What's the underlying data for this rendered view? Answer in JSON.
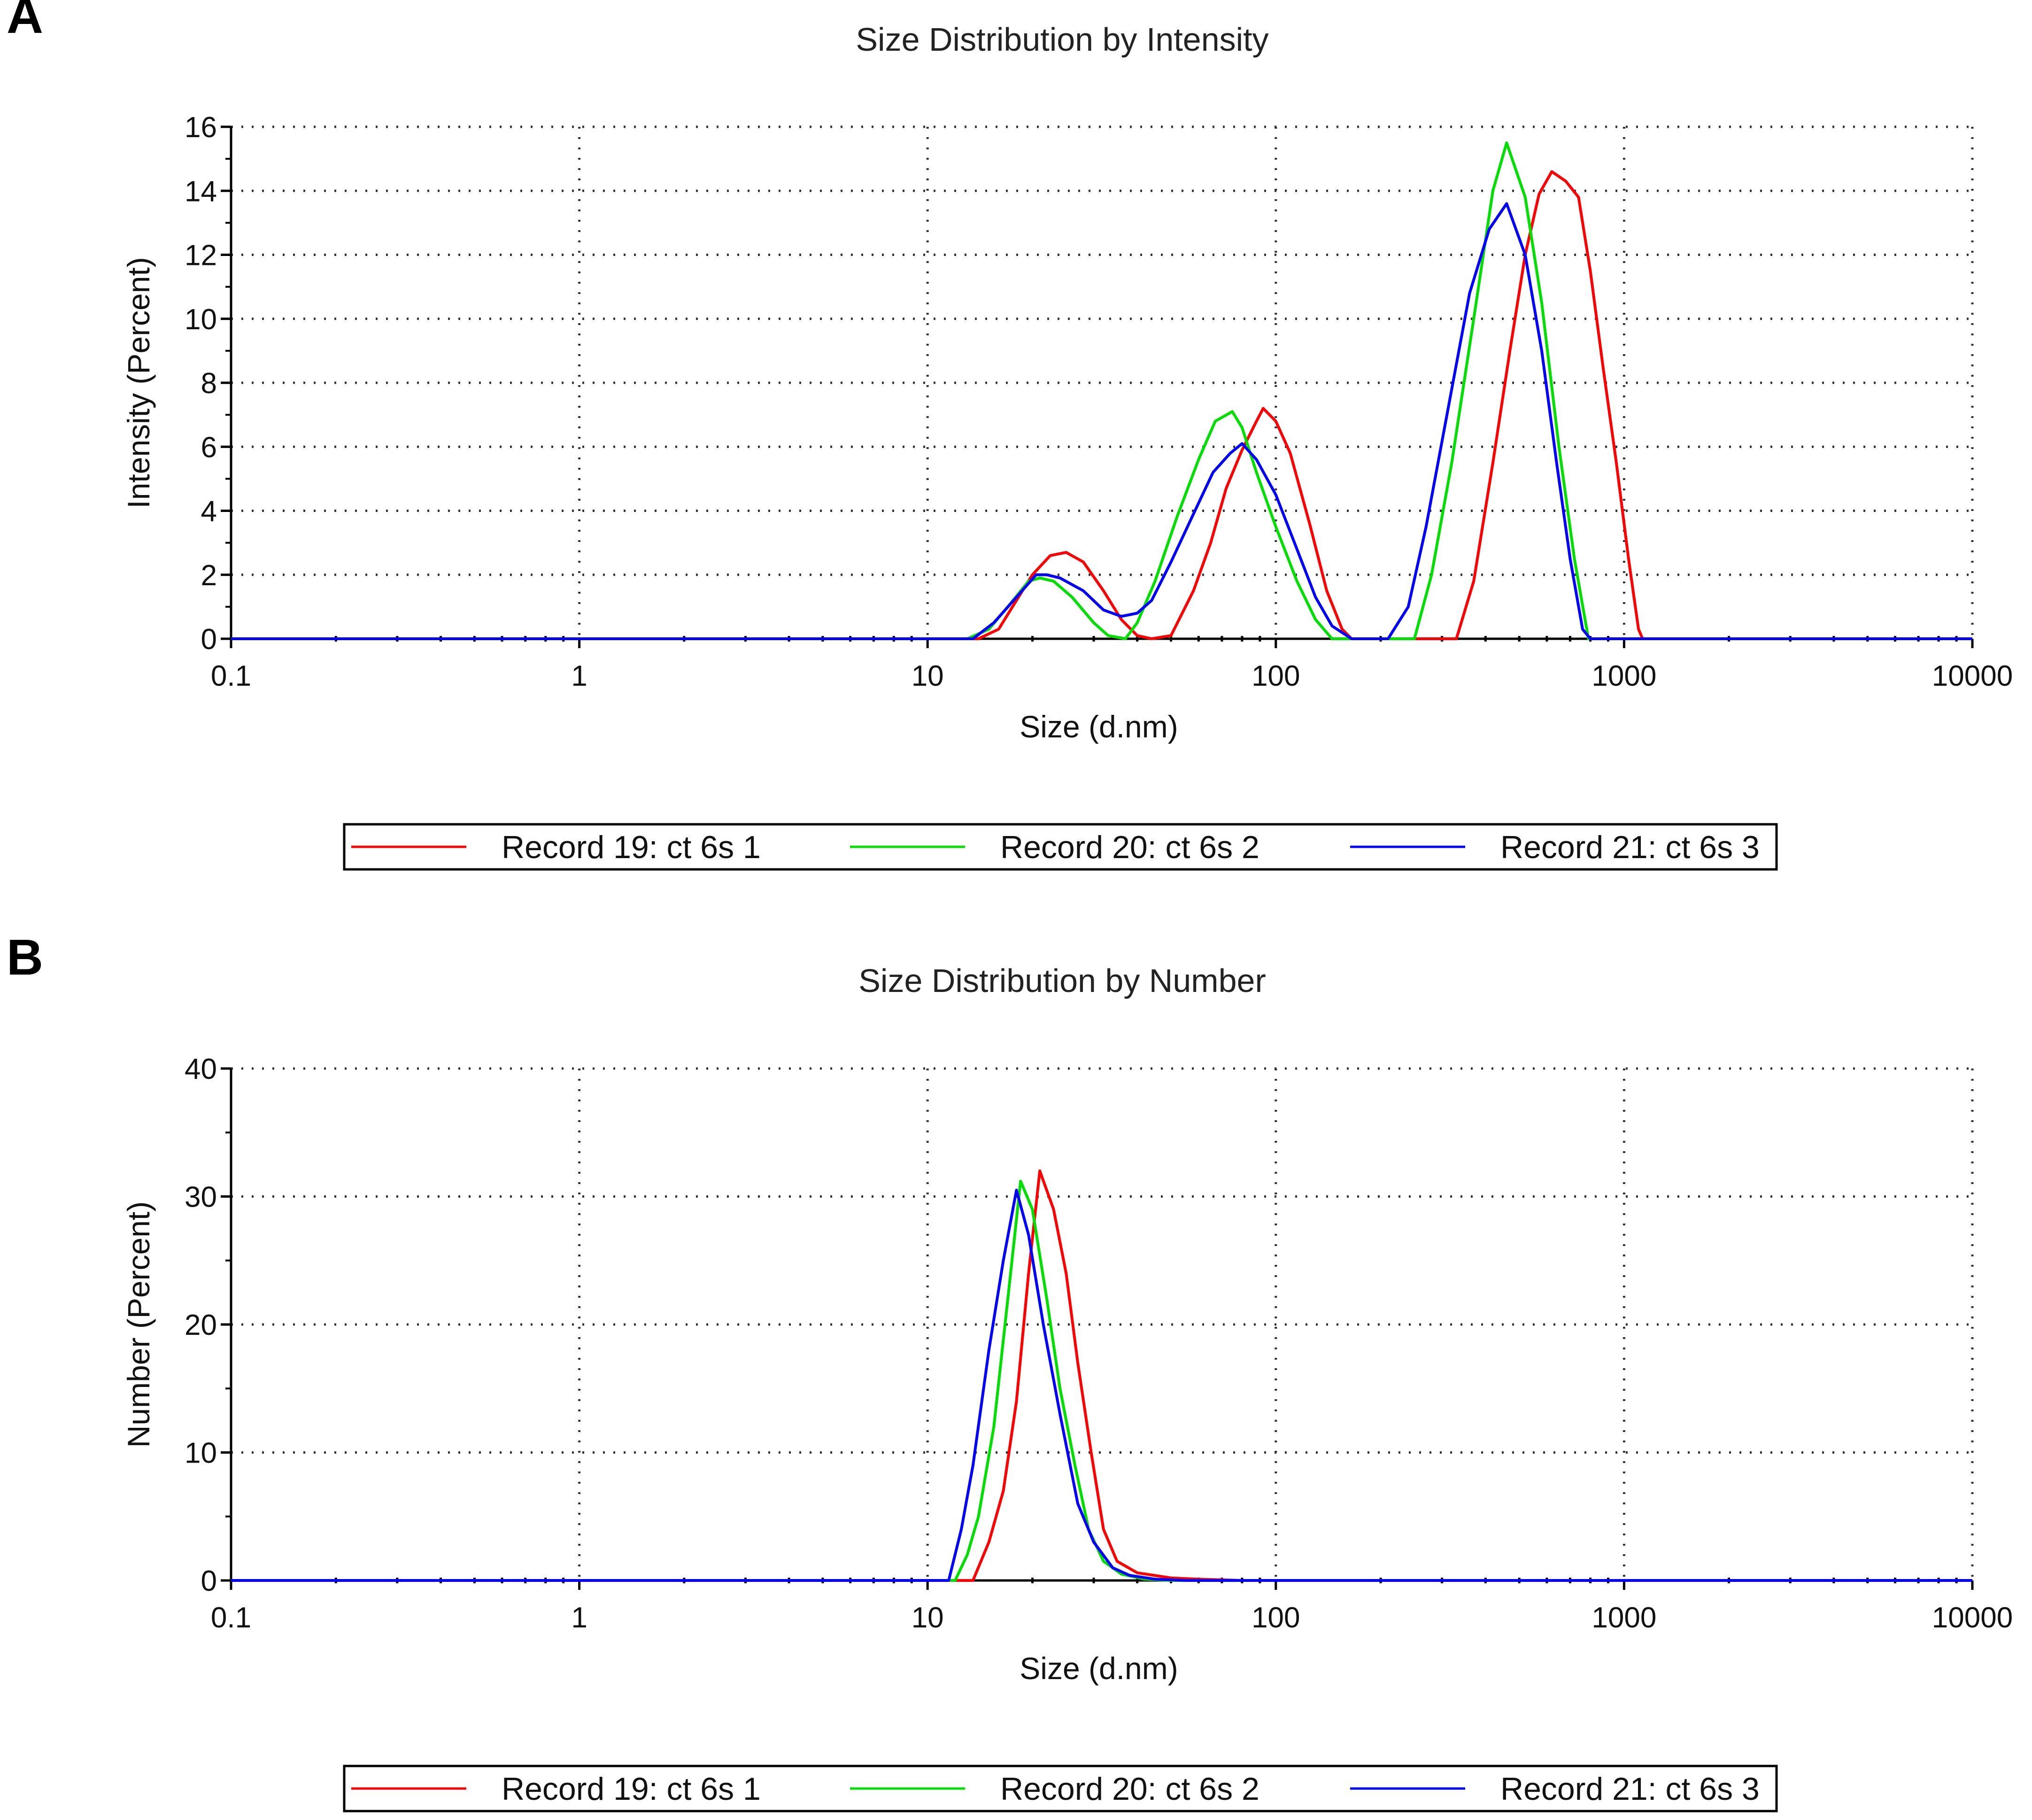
{
  "panels": [
    {
      "label": "A",
      "legend": [
        "Record 19: ct 6s 1",
        "Record 20: ct 6s 2",
        "Record 21: ct 6s 3"
      ]
    },
    {
      "label": "B",
      "legend": [
        "Record 19: ct 6s 1",
        "Record 20: ct 6s 2",
        "Record 21: ct 6s 3"
      ]
    }
  ],
  "chart_data": [
    {
      "type": "line",
      "title": "Size Distribution by Intensity",
      "xlabel": "Size (d.nm)",
      "ylabel": "Intensity (Percent)",
      "xscale": "log",
      "xlim": [
        0.1,
        10000
      ],
      "ylim": [
        0,
        16
      ],
      "xticks": [
        "0.1",
        "1",
        "10",
        "100",
        "1000",
        "10000"
      ],
      "yticks": [
        "0",
        "2",
        "4",
        "6",
        "8",
        "10",
        "12",
        "14",
        "16"
      ],
      "grid": true,
      "legend_position": "bottom",
      "series": [
        {
          "name": "Record 19: ct 6s 1",
          "color": "#ff0000",
          "points": [
            [
              0.1,
              0
            ],
            [
              14,
              0
            ],
            [
              16,
              0.3
            ],
            [
              18,
              1.2
            ],
            [
              20,
              2.0
            ],
            [
              22.5,
              2.6
            ],
            [
              25,
              2.7
            ],
            [
              28,
              2.4
            ],
            [
              32,
              1.5
            ],
            [
              36,
              0.6
            ],
            [
              40,
              0.1
            ],
            [
              44,
              0
            ],
            [
              50,
              0.1
            ],
            [
              58,
              1.5
            ],
            [
              65,
              3.0
            ],
            [
              72,
              4.7
            ],
            [
              80,
              5.9
            ],
            [
              88,
              6.8
            ],
            [
              92,
              7.2
            ],
            [
              100,
              6.8
            ],
            [
              110,
              5.8
            ],
            [
              125,
              3.6
            ],
            [
              140,
              1.5
            ],
            [
              155,
              0.3
            ],
            [
              165,
              0
            ],
            [
              330,
              0
            ],
            [
              370,
              1.8
            ],
            [
              420,
              5.5
            ],
            [
              470,
              9.0
            ],
            [
              520,
              12.0
            ],
            [
              570,
              13.9
            ],
            [
              620,
              14.6
            ],
            [
              680,
              14.3
            ],
            [
              740,
              13.8
            ],
            [
              800,
              11.5
            ],
            [
              870,
              8.5
            ],
            [
              950,
              5.5
            ],
            [
              1030,
              2.5
            ],
            [
              1100,
              0.3
            ],
            [
              1130,
              0
            ],
            [
              10000,
              0
            ]
          ]
        },
        {
          "name": "Record 20: ct 6s 2",
          "color": "#00e000",
          "points": [
            [
              0.1,
              0
            ],
            [
              13,
              0
            ],
            [
              15,
              0.3
            ],
            [
              17,
              1.0
            ],
            [
              19.5,
              1.8
            ],
            [
              21,
              1.9
            ],
            [
              23,
              1.8
            ],
            [
              26,
              1.3
            ],
            [
              30,
              0.5
            ],
            [
              33,
              0.1
            ],
            [
              37,
              0
            ],
            [
              40,
              0.5
            ],
            [
              45,
              1.8
            ],
            [
              52,
              3.8
            ],
            [
              60,
              5.6
            ],
            [
              67,
              6.8
            ],
            [
              75,
              7.1
            ],
            [
              80,
              6.6
            ],
            [
              88,
              5.2
            ],
            [
              100,
              3.5
            ],
            [
              115,
              1.8
            ],
            [
              130,
              0.6
            ],
            [
              145,
              0
            ],
            [
              250,
              0
            ],
            [
              280,
              2.0
            ],
            [
              320,
              5.5
            ],
            [
              370,
              10.0
            ],
            [
              420,
              14.0
            ],
            [
              460,
              15.5
            ],
            [
              520,
              13.8
            ],
            [
              580,
              10.5
            ],
            [
              650,
              6.0
            ],
            [
              720,
              2.5
            ],
            [
              790,
              0
            ],
            [
              10000,
              0
            ]
          ]
        },
        {
          "name": "Record 21: ct 6s 3",
          "color": "#0000ff",
          "points": [
            [
              0.1,
              0
            ],
            [
              13.5,
              0
            ],
            [
              15.5,
              0.5
            ],
            [
              18,
              1.3
            ],
            [
              20.5,
              2.0
            ],
            [
              22,
              2.0
            ],
            [
              24,
              1.9
            ],
            [
              28,
              1.5
            ],
            [
              32,
              0.9
            ],
            [
              36,
              0.7
            ],
            [
              40,
              0.8
            ],
            [
              44,
              1.2
            ],
            [
              50,
              2.4
            ],
            [
              58,
              3.9
            ],
            [
              66,
              5.2
            ],
            [
              74,
              5.8
            ],
            [
              80,
              6.1
            ],
            [
              88,
              5.6
            ],
            [
              100,
              4.5
            ],
            [
              115,
              2.8
            ],
            [
              130,
              1.3
            ],
            [
              145,
              0.4
            ],
            [
              165,
              0
            ],
            [
              210,
              0
            ],
            [
              240,
              1.0
            ],
            [
              270,
              3.5
            ],
            [
              310,
              7.0
            ],
            [
              360,
              10.8
            ],
            [
              410,
              12.8
            ],
            [
              460,
              13.6
            ],
            [
              520,
              12.0
            ],
            [
              580,
              9.0
            ],
            [
              640,
              5.5
            ],
            [
              700,
              2.5
            ],
            [
              760,
              0.3
            ],
            [
              800,
              0
            ],
            [
              10000,
              0
            ]
          ]
        }
      ]
    },
    {
      "type": "line",
      "title": "Size Distribution by Number",
      "xlabel": "Size (d.nm)",
      "ylabel": "Number (Percent)",
      "xscale": "log",
      "xlim": [
        0.1,
        10000
      ],
      "ylim": [
        0,
        40
      ],
      "xticks": [
        "0.1",
        "1",
        "10",
        "100",
        "1000",
        "10000"
      ],
      "yticks": [
        "0",
        "10",
        "20",
        "30",
        "40"
      ],
      "grid": true,
      "legend_position": "bottom",
      "series": [
        {
          "name": "Record 19: ct 6s 1",
          "color": "#ff0000",
          "points": [
            [
              0.1,
              0
            ],
            [
              13.5,
              0
            ],
            [
              15,
              3
            ],
            [
              16.5,
              7
            ],
            [
              18,
              14
            ],
            [
              19.5,
              24
            ],
            [
              21,
              32
            ],
            [
              23,
              29
            ],
            [
              25,
              24
            ],
            [
              27,
              17
            ],
            [
              29.5,
              10
            ],
            [
              32,
              4
            ],
            [
              35,
              1.5
            ],
            [
              40,
              0.6
            ],
            [
              50,
              0.2
            ],
            [
              60,
              0.1
            ],
            [
              80,
              0
            ],
            [
              10000,
              0
            ]
          ]
        },
        {
          "name": "Record 20: ct 6s 2",
          "color": "#00e000",
          "points": [
            [
              0.1,
              0
            ],
            [
              12,
              0
            ],
            [
              13,
              2
            ],
            [
              14,
              5
            ],
            [
              15.5,
              12
            ],
            [
              17,
              22
            ],
            [
              18.5,
              31.2
            ],
            [
              20,
              29
            ],
            [
              22,
              22
            ],
            [
              24,
              15
            ],
            [
              26.5,
              9
            ],
            [
              29,
              4
            ],
            [
              32,
              1.5
            ],
            [
              36,
              0.5
            ],
            [
              42,
              0.1
            ],
            [
              50,
              0
            ],
            [
              10000,
              0
            ]
          ]
        },
        {
          "name": "Record 21: ct 6s 3",
          "color": "#0000ff",
          "points": [
            [
              0.1,
              0
            ],
            [
              11.5,
              0
            ],
            [
              12.5,
              4
            ],
            [
              13.5,
              9
            ],
            [
              15,
              18
            ],
            [
              16.5,
              25
            ],
            [
              18,
              30.5
            ],
            [
              19.5,
              27
            ],
            [
              21.5,
              20
            ],
            [
              24,
              13
            ],
            [
              27,
              6
            ],
            [
              30,
              3
            ],
            [
              34,
              1
            ],
            [
              38,
              0.4
            ],
            [
              45,
              0.1
            ],
            [
              55,
              0
            ],
            [
              10000,
              0
            ]
          ]
        }
      ]
    }
  ]
}
